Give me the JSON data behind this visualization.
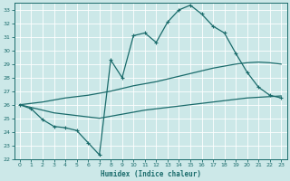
{
  "xlabel": "Humidex (Indice chaleur)",
  "xlim": [
    -0.5,
    23.5
  ],
  "ylim": [
    22,
    33.5
  ],
  "yticks": [
    22,
    23,
    24,
    25,
    26,
    27,
    28,
    29,
    30,
    31,
    32,
    33
  ],
  "xticks": [
    0,
    1,
    2,
    3,
    4,
    5,
    6,
    7,
    8,
    9,
    10,
    11,
    12,
    13,
    14,
    15,
    16,
    17,
    18,
    19,
    20,
    21,
    22,
    23
  ],
  "bg_color": "#cce8e8",
  "grid_color": "#b8d8d8",
  "line_color": "#1a6b6b",
  "line1_x": [
    0,
    1,
    2,
    3,
    4,
    5,
    6,
    7,
    8,
    9,
    10,
    11,
    12,
    13,
    14,
    15,
    16,
    17,
    18,
    19,
    20,
    21,
    22,
    23
  ],
  "line1_y": [
    26.0,
    25.8,
    25.6,
    25.4,
    25.3,
    25.2,
    25.1,
    25.0,
    25.15,
    25.3,
    25.45,
    25.6,
    25.7,
    25.8,
    25.9,
    26.0,
    26.1,
    26.2,
    26.3,
    26.4,
    26.5,
    26.55,
    26.6,
    26.65
  ],
  "line2_x": [
    0,
    1,
    2,
    3,
    4,
    5,
    6,
    7,
    8,
    9,
    10,
    11,
    12,
    13,
    14,
    15,
    16,
    17,
    18,
    19,
    20,
    21,
    22,
    23
  ],
  "line2_y": [
    26.0,
    26.1,
    26.2,
    26.35,
    26.5,
    26.6,
    26.7,
    26.85,
    27.0,
    27.2,
    27.4,
    27.55,
    27.7,
    27.9,
    28.1,
    28.3,
    28.5,
    28.7,
    28.85,
    29.0,
    29.1,
    29.15,
    29.1,
    29.0
  ],
  "line3_x": [
    0,
    1,
    2,
    3,
    4,
    5,
    6,
    7,
    8,
    9,
    10,
    11,
    12,
    13,
    14,
    15,
    16,
    17,
    18,
    19,
    20,
    21,
    22,
    23
  ],
  "line3_y": [
    26.0,
    25.7,
    24.9,
    24.4,
    24.3,
    24.1,
    23.2,
    22.3,
    29.3,
    28.0,
    31.1,
    31.3,
    30.6,
    32.1,
    33.0,
    33.35,
    32.7,
    31.8,
    31.3,
    29.8,
    28.4,
    27.3,
    26.7,
    26.5
  ]
}
